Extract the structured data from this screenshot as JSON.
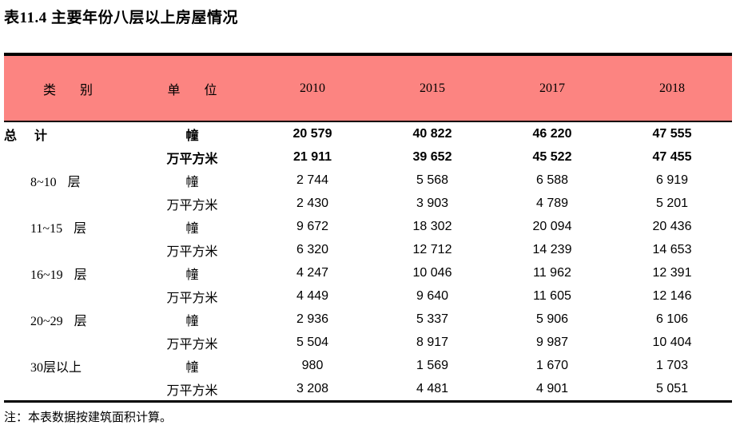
{
  "title": "表11.4 主要年份八层以上房屋情况",
  "note": "注：本表数据按建筑面积计算。",
  "colors": {
    "header_bg": "#FC8481",
    "rule": "#000000",
    "page_bg": "#FFFFFF"
  },
  "table": {
    "headers": {
      "category": "类 别",
      "unit": "单 位",
      "years": [
        "2010",
        "2015",
        "2017",
        "2018"
      ]
    },
    "rows": [
      {
        "category": "总 计",
        "unit": "幢",
        "values": [
          "20 579",
          "40 822",
          "46 220",
          "47 555"
        ],
        "bold": true,
        "indent": false
      },
      {
        "category": "",
        "unit": "万平方米",
        "values": [
          "21 911",
          "39 652",
          "45 522",
          "47 455"
        ],
        "bold": true,
        "indent": false
      },
      {
        "category": "8~10 层",
        "unit": "幢",
        "values": [
          "2 744",
          "5 568",
          "6 588",
          "6 919"
        ],
        "bold": false,
        "indent": true
      },
      {
        "category": "",
        "unit": "万平方米",
        "values": [
          "2 430",
          "3 903",
          "4 789",
          "5 201"
        ],
        "bold": false,
        "indent": true
      },
      {
        "category": "11~15 层",
        "unit": "幢",
        "values": [
          "9 672",
          "18 302",
          "20 094",
          "20 436"
        ],
        "bold": false,
        "indent": true
      },
      {
        "category": "",
        "unit": "万平方米",
        "values": [
          "6 320",
          "12 712",
          "14 239",
          "14 653"
        ],
        "bold": false,
        "indent": true
      },
      {
        "category": "16~19 层",
        "unit": "幢",
        "values": [
          "4 247",
          "10 046",
          "11 962",
          "12 391"
        ],
        "bold": false,
        "indent": true
      },
      {
        "category": "",
        "unit": "万平方米",
        "values": [
          "4 449",
          "9 640",
          "11 605",
          "12 146"
        ],
        "bold": false,
        "indent": true
      },
      {
        "category": "20~29 层",
        "unit": "幢",
        "values": [
          "2 936",
          "5 337",
          "5 906",
          "6 106"
        ],
        "bold": false,
        "indent": true
      },
      {
        "category": "",
        "unit": "万平方米",
        "values": [
          "5 504",
          "8 917",
          "9 987",
          "10 404"
        ],
        "bold": false,
        "indent": true
      },
      {
        "category": "30层以上",
        "unit": "幢",
        "values": [
          "980",
          "1 569",
          "1 670",
          "1 703"
        ],
        "bold": false,
        "indent": true
      },
      {
        "category": "",
        "unit": "万平方米",
        "values": [
          "3 208",
          "4 481",
          "4 901",
          "5 051"
        ],
        "bold": false,
        "indent": true
      }
    ]
  }
}
